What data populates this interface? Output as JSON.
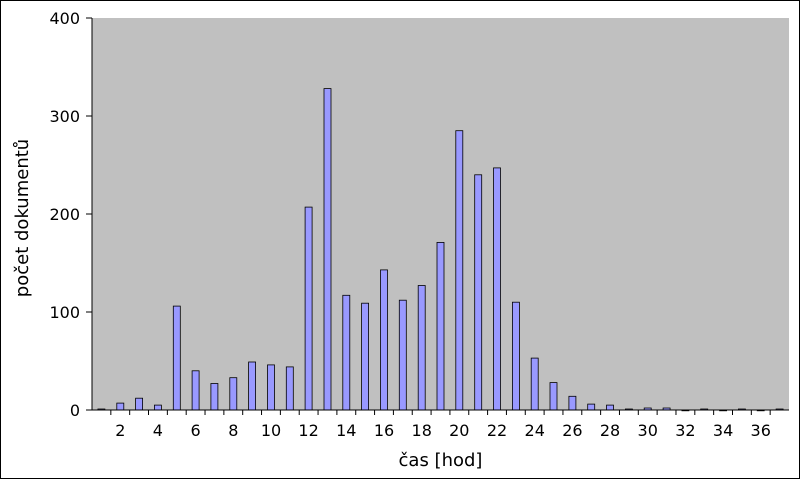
{
  "chart_data": {
    "type": "bar",
    "title": "",
    "xlabel": "čas [hod]",
    "ylabel": "počet dokumentů",
    "ylim": [
      0,
      400
    ],
    "y_ticks": [
      0,
      100,
      200,
      300,
      400
    ],
    "x_tick_labels": [
      "2",
      "4",
      "6",
      "8",
      "10",
      "12",
      "14",
      "16",
      "18",
      "20",
      "22",
      "24",
      "26",
      "28",
      "30",
      "32",
      "34",
      "36"
    ],
    "grid": false,
    "legend": "none",
    "bar_color": "#9999ff",
    "plot_background": "#c0c0c0",
    "categories": [
      1,
      2,
      3,
      4,
      5,
      6,
      7,
      8,
      9,
      10,
      11,
      12,
      13,
      14,
      15,
      16,
      17,
      18,
      19,
      20,
      21,
      22,
      23,
      24,
      25,
      26,
      27,
      28,
      29,
      30,
      31,
      32,
      33,
      34,
      35,
      36,
      37
    ],
    "values": [
      1,
      7,
      12,
      5,
      106,
      40,
      27,
      33,
      49,
      46,
      44,
      207,
      328,
      117,
      109,
      143,
      112,
      127,
      171,
      285,
      240,
      247,
      110,
      53,
      28,
      14,
      6,
      5,
      1,
      2,
      2,
      0,
      1,
      0,
      1,
      0,
      1
    ]
  }
}
